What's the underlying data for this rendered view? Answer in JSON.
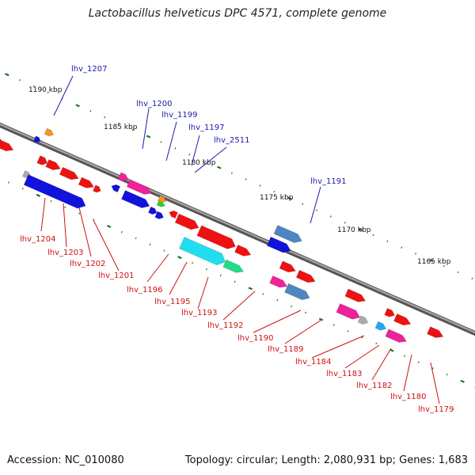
{
  "title": "Lactobacillus helveticus DPC 4571, complete genome",
  "footer": {
    "accession": "Accession: NC_010080",
    "summary": "Topology: circular; Length: 2,080,931 bp; Genes: 1,683"
  },
  "colors": {
    "backbone": "#808080",
    "blue_label": "#1a1ab0",
    "red_label": "#cc1111",
    "tick": "#1e7a1e"
  },
  "kbp_ticks": [
    "1190 kbp",
    "1185 kbp",
    "1180 kbp",
    "1175 kbp",
    "1170 kbp",
    "1165 kbp"
  ],
  "upper_labels": [
    "lhv_1207",
    "lhv_1200",
    "lhv_1199",
    "lhv_1197",
    "lhv_2511",
    "lhv_1191"
  ],
  "lower_labels": [
    "lhv_1204",
    "lhv_1203",
    "lhv_1202",
    "lhv_1201",
    "lhv_1196",
    "lhv_1195",
    "lhv_1193",
    "lhv_1192",
    "lhv_1190",
    "lhv_1189",
    "lhv_1184",
    "lhv_1183",
    "lhv_1182",
    "lhv_1180",
    "lhv_1179"
  ]
}
